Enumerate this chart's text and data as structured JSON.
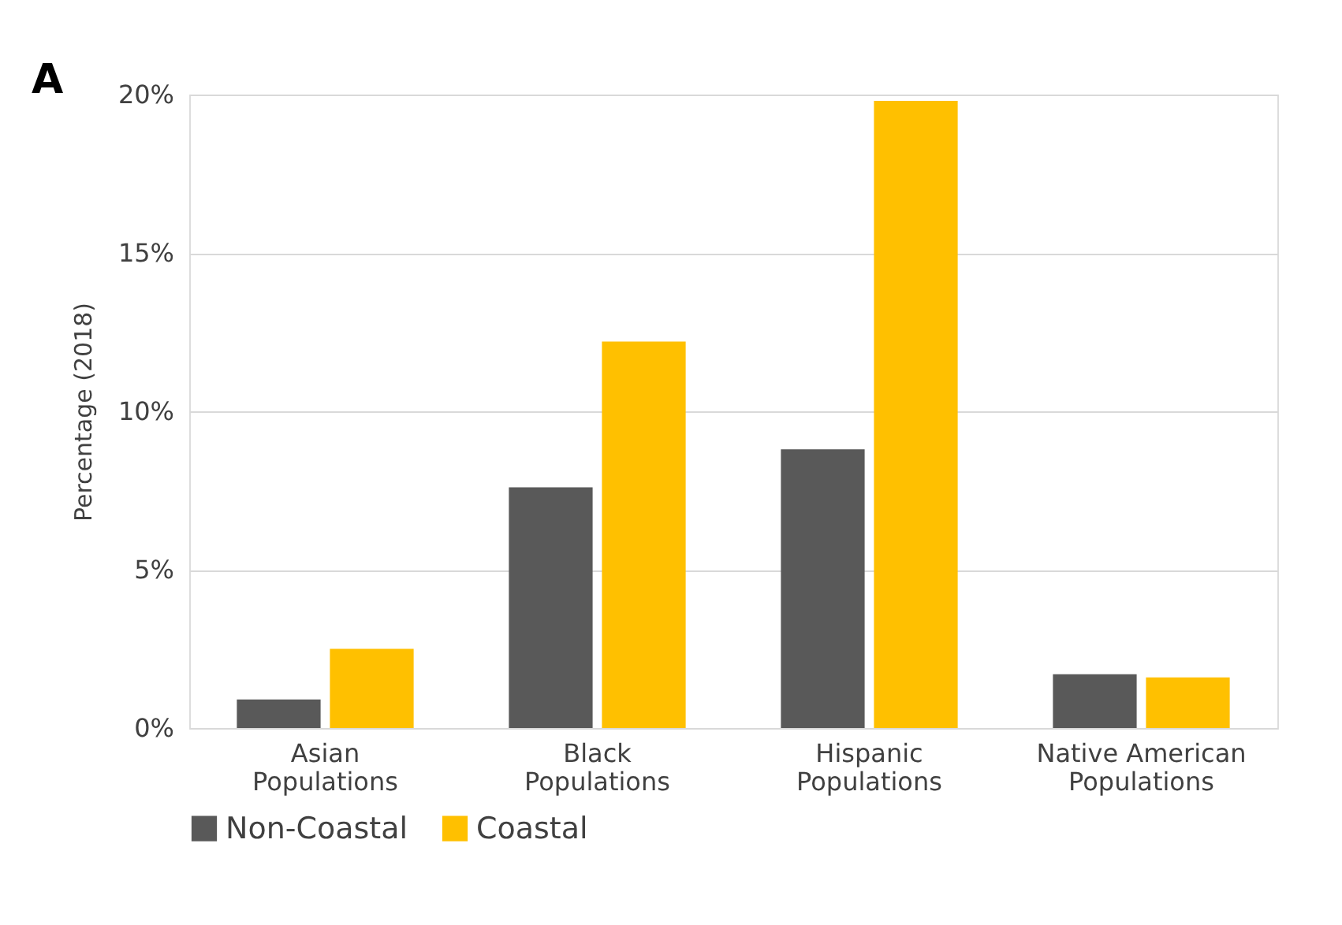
{
  "chart_data": {
    "type": "bar",
    "ylabel": "Percentage (2018)",
    "annotations": [
      "A"
    ],
    "categories": [
      "Asian Populations",
      "Black Populations",
      "Hispanic Populations",
      "Native American Populations"
    ],
    "series": [
      {
        "name": "Non-Coastal",
        "color": "#595959",
        "values": [
          0.9,
          7.6,
          8.8,
          1.7
        ]
      },
      {
        "name": "Coastal",
        "color": "#ffc000",
        "values": [
          2.5,
          12.2,
          19.8,
          1.6
        ]
      }
    ],
    "ylim": [
      0,
      20
    ],
    "yticks": [
      {
        "value": 0,
        "label": "0%"
      },
      {
        "value": 5,
        "label": "5%"
      },
      {
        "value": 10,
        "label": "10%"
      },
      {
        "value": 15,
        "label": "15%"
      },
      {
        "value": 20,
        "label": "20%"
      }
    ],
    "grid": "y",
    "legend": "bottom"
  }
}
